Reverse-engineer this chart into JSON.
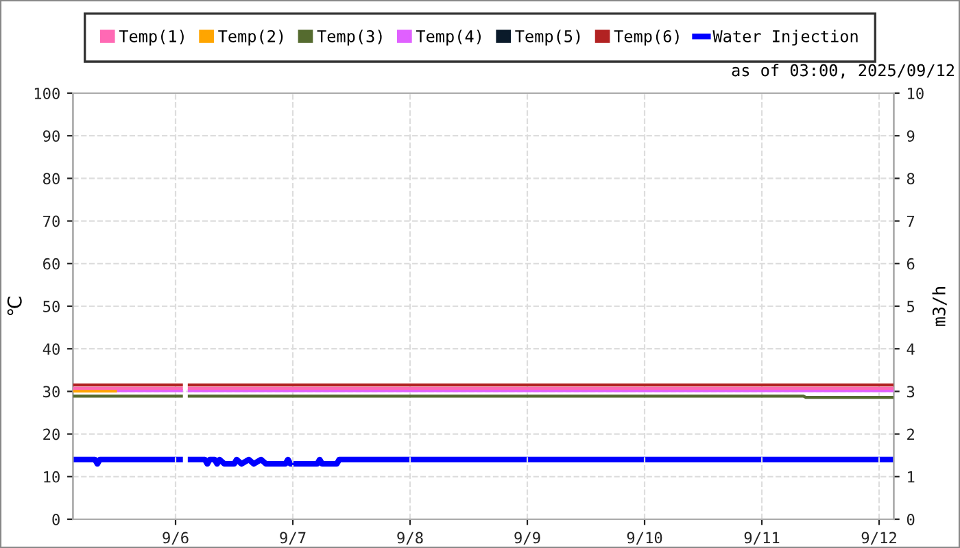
{
  "chart_data": {
    "type": "line",
    "ylabel": "℃",
    "y2label": "m3/h",
    "annotations": [
      "as of 03:00, 2025/09/12"
    ],
    "xlim": [
      "2025-09-05T03:00",
      "2025-09-12T03:00"
    ],
    "xticks": [
      {
        "value": "2025-09-06",
        "label": "9/6"
      },
      {
        "value": "2025-09-07",
        "label": "9/7"
      },
      {
        "value": "2025-09-08",
        "label": "9/8"
      },
      {
        "value": "2025-09-09",
        "label": "9/9"
      },
      {
        "value": "2025-09-10",
        "label": "9/10"
      },
      {
        "value": "2025-09-11",
        "label": "9/11"
      },
      {
        "value": "2025-09-12",
        "label": "9/12"
      }
    ],
    "ylim": [
      0,
      100
    ],
    "yticks": [
      0,
      10,
      20,
      30,
      40,
      50,
      60,
      70,
      80,
      90,
      100
    ],
    "y2lim": [
      0,
      10
    ],
    "y2ticks": [
      0,
      1,
      2,
      3,
      4,
      5,
      6,
      7,
      8,
      9,
      10
    ],
    "grid": true,
    "legend": "top",
    "marker": "none",
    "line_style": "solid",
    "series": [
      {
        "name": "Temp(1)",
        "color": "#ff69b4",
        "x": [
          "2025-09-05T03:00",
          "2025-09-06T01:30",
          "2025-09-06T02:00",
          "2025-09-06T02:30",
          "2025-09-12T03:00"
        ],
        "values": [
          30.7,
          30.7,
          null,
          30.7,
          30.7
        ]
      },
      {
        "name": "Temp(2)",
        "color": "#ffa500",
        "x": [
          "2025-09-05T03:00",
          "2025-09-05T12:00"
        ],
        "values": [
          30.1,
          30.1
        ]
      },
      {
        "name": "Temp(3)",
        "color": "#556b2f",
        "x": [
          "2025-09-05T03:00",
          "2025-09-06T01:30",
          "2025-09-06T02:00",
          "2025-09-06T02:30",
          "2025-09-11T08:30",
          "2025-09-11T09:00",
          "2025-09-12T03:00"
        ],
        "values": [
          28.9,
          28.9,
          null,
          28.9,
          28.9,
          28.6,
          28.6
        ]
      },
      {
        "name": "Temp(4)",
        "color": "#e060ff",
        "x": [
          "2025-09-05T03:00",
          "2025-09-06T01:30",
          "2025-09-06T02:00",
          "2025-09-06T02:30",
          "2025-09-12T03:00"
        ],
        "values": [
          30.2,
          30.2,
          null,
          30.2,
          30.2
        ]
      },
      {
        "name": "Temp(5)",
        "color": "#0a1a2a"
      },
      {
        "name": "Temp(6)",
        "color": "#b22222",
        "x": [
          "2025-09-05T03:00",
          "2025-09-06T01:30",
          "2025-09-06T02:00",
          "2025-09-06T02:30",
          "2025-09-12T03:00"
        ],
        "values": [
          31.5,
          31.5,
          null,
          31.5,
          31.5
        ]
      },
      {
        "name": "Water Injection",
        "color": "#0000ff",
        "axis": "y2",
        "x": [
          "2025-09-05T03:00",
          "2025-09-05T07:30",
          "2025-09-05T08:00",
          "2025-09-05T08:30",
          "2025-09-06T01:30",
          "2025-09-06T02:00",
          "2025-09-06T02:30",
          "2025-09-06T06:00",
          "2025-09-06T06:30",
          "2025-09-06T07:00",
          "2025-09-06T08:00",
          "2025-09-06T08:30",
          "2025-09-06T09:00",
          "2025-09-06T10:00",
          "2025-09-06T12:00",
          "2025-09-06T12:30",
          "2025-09-06T13:30",
          "2025-09-06T15:00",
          "2025-09-06T16:00",
          "2025-09-06T17:30",
          "2025-09-06T18:30",
          "2025-09-06T22:30",
          "2025-09-06T23:00",
          "2025-09-06T23:30",
          "2025-09-07T05:00",
          "2025-09-07T05:30",
          "2025-09-07T06:00",
          "2025-09-07T09:00",
          "2025-09-07T09:30",
          "2025-09-12T03:00"
        ],
        "values": [
          1.4,
          1.4,
          1.3,
          1.4,
          1.4,
          null,
          1.4,
          1.4,
          1.3,
          1.4,
          1.4,
          1.3,
          1.4,
          1.3,
          1.3,
          1.4,
          1.3,
          1.4,
          1.3,
          1.4,
          1.3,
          1.3,
          1.4,
          1.3,
          1.3,
          1.4,
          1.3,
          1.3,
          1.4,
          1.4
        ]
      }
    ]
  }
}
